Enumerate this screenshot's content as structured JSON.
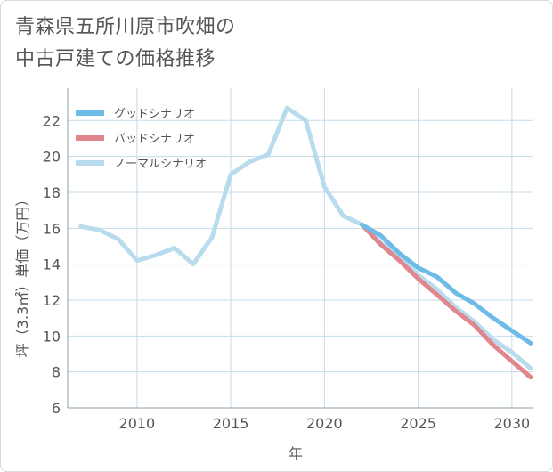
{
  "title_lines": [
    "青森県五所川原市吹畑の",
    "中古戸建ての価格推移"
  ],
  "chart_data": {
    "type": "line",
    "xlabel": "年",
    "ylabel": "坪（3.3㎡）単価（万円）",
    "xlim": [
      2006.3,
      2031.1
    ],
    "ylim": [
      6,
      23.8
    ],
    "xticks": [
      2010,
      2015,
      2020,
      2025,
      2030
    ],
    "yticks": [
      6,
      8,
      10,
      12,
      14,
      16,
      18,
      20,
      22
    ],
    "legend_position": "top-left",
    "series": [
      {
        "name": "グッドシナリオ",
        "color": "#6fbbe8",
        "x": [
          2022,
          2023,
          2024,
          2025,
          2026,
          2027,
          2028,
          2029,
          2030,
          2031
        ],
        "values": [
          16.2,
          15.6,
          14.6,
          13.8,
          13.3,
          12.4,
          11.8,
          11.0,
          10.3,
          9.6
        ]
      },
      {
        "name": "バッドシナリオ",
        "color": "#e0868c",
        "x": [
          2022,
          2023,
          2024,
          2025,
          2026,
          2027,
          2028,
          2029,
          2030,
          2031
        ],
        "values": [
          16.2,
          15.1,
          14.2,
          13.2,
          12.3,
          11.4,
          10.6,
          9.5,
          8.6,
          7.7
        ]
      },
      {
        "name": "ノーマルシナリオ",
        "color": "#b8dcee",
        "x": [
          2007,
          2008,
          2009,
          2010,
          2011,
          2012,
          2013,
          2014,
          2015,
          2016,
          2017,
          2018,
          2019,
          2020,
          2021,
          2022,
          2023,
          2024,
          2025,
          2026,
          2027,
          2028,
          2029,
          2030,
          2031
        ],
        "values": [
          16.1,
          15.9,
          15.4,
          14.2,
          14.5,
          14.9,
          14.0,
          15.5,
          19.0,
          19.7,
          20.1,
          22.7,
          22.0,
          18.3,
          16.7,
          16.2,
          15.2,
          14.5,
          13.4,
          12.6,
          11.6,
          10.8,
          9.8,
          9.1,
          8.2
        ]
      }
    ]
  }
}
